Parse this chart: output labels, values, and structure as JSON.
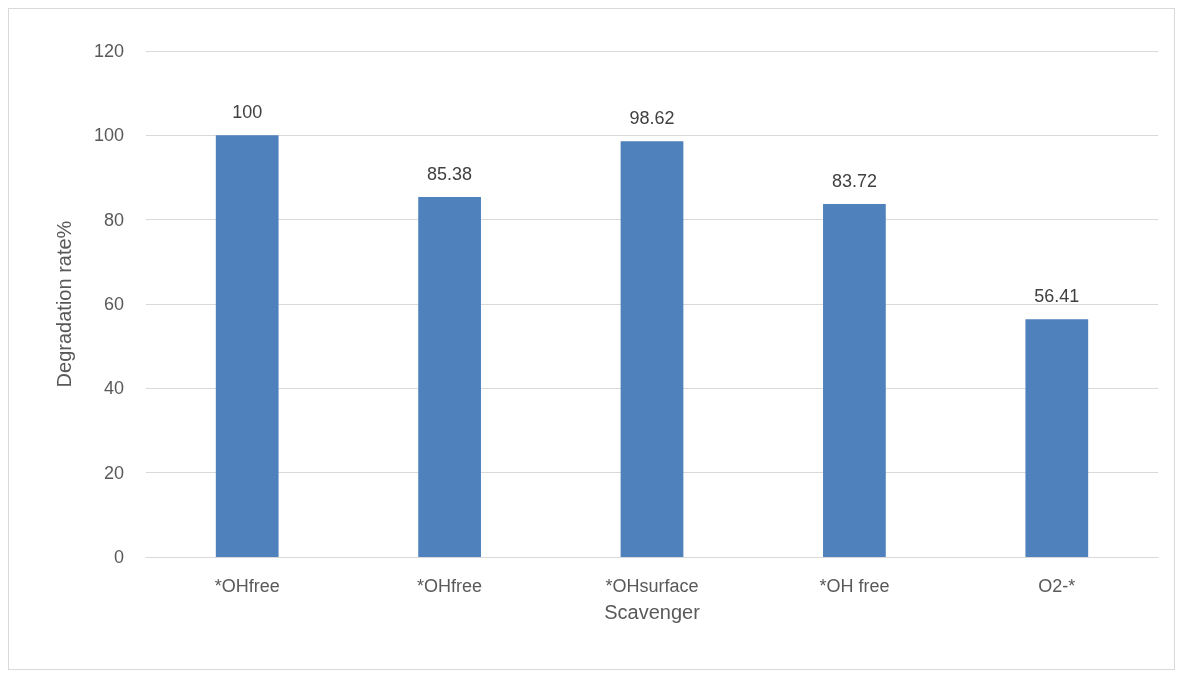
{
  "chart_data": {
    "type": "bar",
    "xlabel": "Scavenger",
    "ylabel": "Degradation rate%",
    "categories": [
      "*OHfree",
      "*OHfree",
      "*OHsurface",
      "*OH free",
      "O2-*"
    ],
    "values": [
      100,
      85.38,
      98.62,
      83.72,
      56.41
    ],
    "color": "#4f81bd",
    "ylim": [
      0,
      120
    ],
    "yticks": [
      0,
      20,
      40,
      60,
      80,
      100,
      120
    ],
    "grid": "y",
    "data_labels": true
  }
}
